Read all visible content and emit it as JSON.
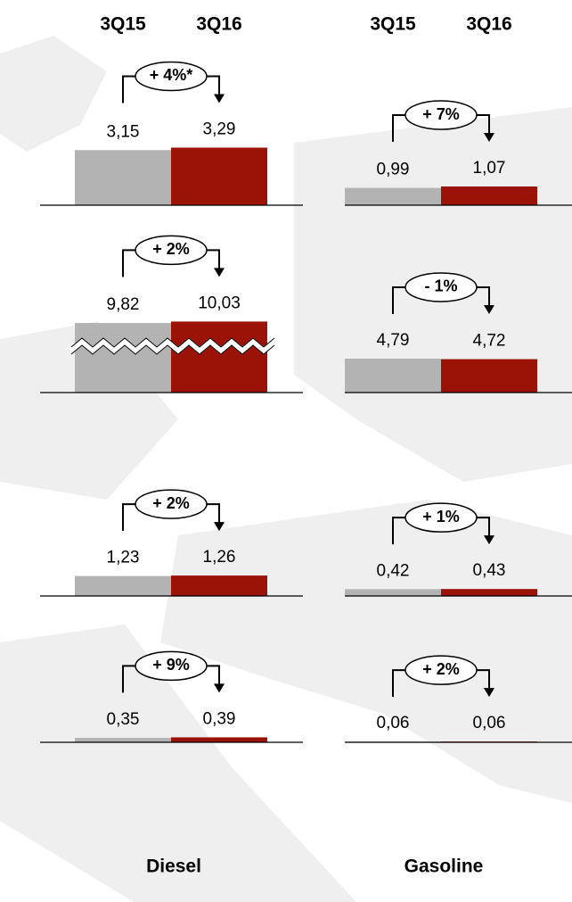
{
  "chart_data": [
    {
      "type": "bar",
      "title": "Diesel",
      "categories": [
        "3Q15",
        "3Q16"
      ],
      "colors": [
        "#b3b3b3",
        "#9b1306"
      ],
      "panels": [
        {
          "values": [
            3.15,
            3.29
          ],
          "value_labels": [
            "3,15",
            "3,29"
          ],
          "annotation": "+ 4%*",
          "ylim": [
            0,
            5.1
          ]
        },
        {
          "values": [
            9.82,
            10.03
          ],
          "value_labels": [
            "9,82",
            "10,03"
          ],
          "annotation": "+ 2%",
          "ylim": [
            0,
            12.6
          ],
          "axis_break": true
        },
        {
          "values": [
            1.23,
            1.26
          ],
          "value_labels": [
            "1,23",
            "1,26"
          ],
          "annotation": "+ 2%",
          "ylim": [
            0,
            5.5
          ]
        },
        {
          "values": [
            0.35,
            0.39
          ],
          "value_labels": [
            "0,35",
            "0,39"
          ],
          "annotation": "+ 9%",
          "ylim": [
            0,
            7
          ]
        }
      ]
    },
    {
      "type": "bar",
      "title": "Gasoline",
      "categories": [
        "3Q15",
        "3Q16"
      ],
      "colors": [
        "#b3b3b3",
        "#9b1306"
      ],
      "panels": [
        {
          "values": [
            0.99,
            1.07
          ],
          "value_labels": [
            "0,99",
            "1,07"
          ],
          "annotation": "+ 7%",
          "ylim": [
            0,
            5.1
          ]
        },
        {
          "values": [
            4.79,
            4.72
          ],
          "value_labels": [
            "4,79",
            "4,72"
          ],
          "annotation": "- 1%",
          "ylim": [
            0,
            12.6
          ]
        },
        {
          "values": [
            0.42,
            0.43
          ],
          "value_labels": [
            "0,42",
            "0,43"
          ],
          "annotation": "+ 1%",
          "ylim": [
            0,
            5.5
          ]
        },
        {
          "values": [
            0.06,
            0.06
          ],
          "value_labels": [
            "0,06",
            "0,06"
          ],
          "annotation": "+ 2%",
          "ylim": [
            0,
            7
          ]
        }
      ]
    }
  ]
}
